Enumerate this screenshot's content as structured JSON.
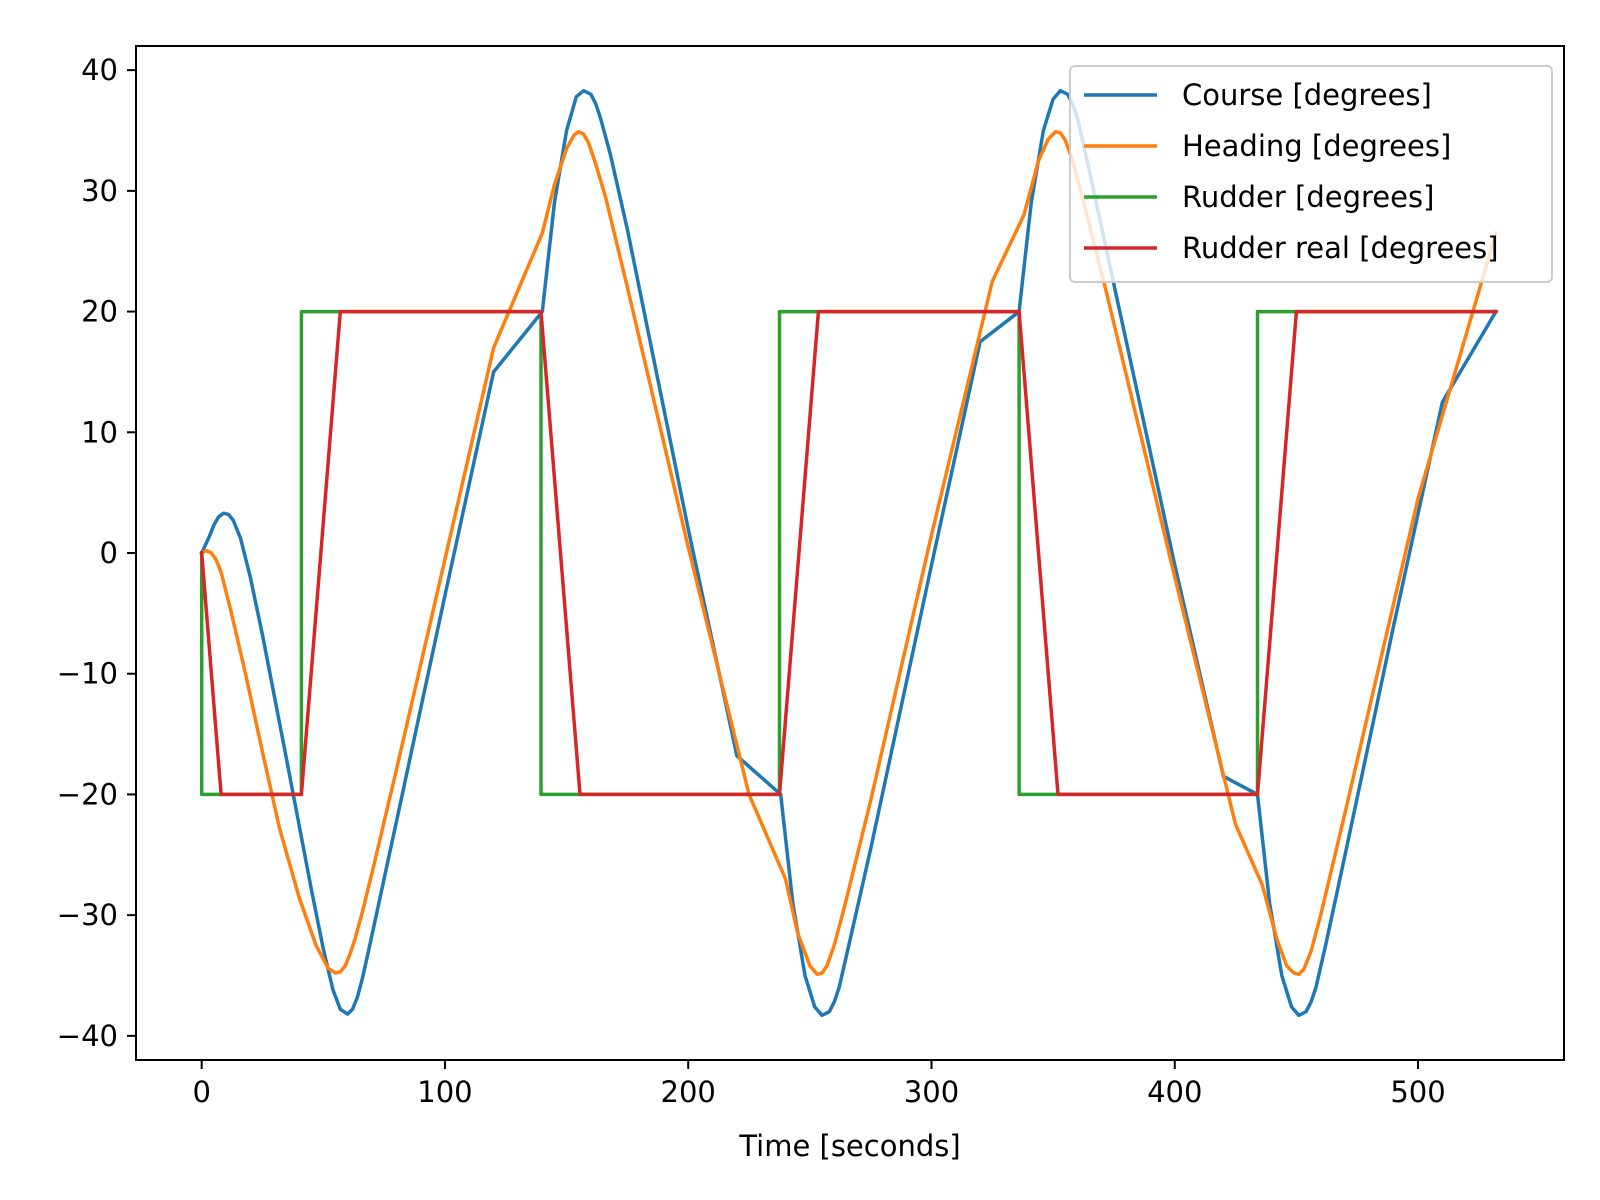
{
  "chart_data": {
    "type": "line",
    "title": "",
    "xlabel": "Time [seconds]",
    "ylabel": "",
    "xlim": [
      -27,
      560
    ],
    "ylim": [
      -42,
      42
    ],
    "x_ticks": [
      0,
      100,
      200,
      300,
      400,
      500
    ],
    "x_tick_labels": [
      "0",
      "100",
      "200",
      "300",
      "400",
      "500"
    ],
    "y_ticks": [
      -40,
      -30,
      -20,
      -10,
      0,
      10,
      20,
      30,
      40
    ],
    "y_tick_labels": [
      "−40",
      "−30",
      "−20",
      "−10",
      "0",
      "10",
      "20",
      "30",
      "40"
    ],
    "grid": false,
    "legend": {
      "placement": "upper right"
    },
    "series": [
      {
        "name": "Course [degrees]",
        "color": "#1f77b4",
        "x": [
          0,
          3,
          5,
          7,
          9,
          11,
          13,
          16,
          20,
          25,
          30,
          35,
          40,
          45,
          50,
          54,
          57,
          60,
          62,
          64,
          66,
          68,
          72,
          80,
          100,
          120,
          140,
          145,
          150,
          154,
          157,
          160,
          162,
          164,
          168,
          175,
          200,
          220,
          238,
          243,
          248,
          252,
          255,
          258,
          260,
          262,
          266,
          275,
          300,
          320,
          336,
          341,
          346,
          350,
          353,
          356,
          358,
          360,
          364,
          372,
          400,
          420,
          434,
          439,
          444,
          448,
          451,
          454,
          456,
          458,
          462,
          470,
          490,
          510,
          532
        ],
        "values": [
          0,
          1.3,
          2.3,
          3.0,
          3.3,
          3.2,
          2.7,
          1.2,
          -2.0,
          -6.8,
          -12.0,
          -17.2,
          -22.5,
          -27.8,
          -32.8,
          -36.2,
          -37.8,
          -38.2,
          -37.8,
          -36.8,
          -35.3,
          -33.5,
          -29.8,
          -22.3,
          -3.5,
          15.0,
          20.0,
          29.0,
          35.0,
          37.8,
          38.3,
          38.0,
          37.2,
          36.0,
          33.0,
          26.8,
          2.0,
          -16.8,
          -20.0,
          -29.0,
          -35.0,
          -37.6,
          -38.3,
          -38.0,
          -37.2,
          -36.0,
          -32.5,
          -24.5,
          -1.0,
          17.5,
          20.0,
          29.0,
          35.0,
          37.6,
          38.3,
          38.0,
          37.2,
          36.0,
          32.5,
          25.0,
          -1.0,
          -18.5,
          -20.0,
          -29.0,
          -35.0,
          -37.6,
          -38.3,
          -38.0,
          -37.2,
          -36.0,
          -32.5,
          -25.0,
          -6.0,
          12.5,
          20.0
        ]
      },
      {
        "name": "Heading [degrees]",
        "color": "#ff7f0e",
        "x": [
          0,
          2,
          4,
          6,
          8,
          12,
          18,
          25,
          32,
          40,
          47,
          52,
          55,
          57,
          59,
          61,
          63,
          66,
          70,
          80,
          100,
          120,
          140,
          145,
          150,
          153,
          155,
          157,
          159,
          162,
          166,
          175,
          200,
          225,
          240,
          245,
          250,
          253,
          255,
          257,
          260,
          264,
          275,
          300,
          325,
          338,
          344,
          348,
          351,
          353,
          355,
          358,
          362,
          372,
          400,
          425,
          436,
          442,
          446,
          449,
          451,
          453,
          456,
          460,
          470,
          500,
          532
        ],
        "values": [
          0,
          0.2,
          0,
          -0.6,
          -1.6,
          -4.8,
          -10.0,
          -16.5,
          -22.8,
          -28.5,
          -32.5,
          -34.4,
          -34.8,
          -34.7,
          -34.2,
          -33.2,
          -32.0,
          -29.8,
          -26.5,
          -18.0,
          -0.5,
          17.0,
          26.5,
          30.5,
          33.5,
          34.6,
          34.9,
          34.7,
          34.0,
          32.2,
          29.5,
          22.0,
          0.5,
          -20.0,
          -27.0,
          -31.5,
          -34.2,
          -34.9,
          -34.8,
          -34.2,
          -32.5,
          -29.5,
          -20.5,
          1.5,
          22.5,
          28.0,
          32.5,
          34.3,
          34.9,
          34.8,
          34.2,
          32.5,
          29.5,
          21.5,
          -2.0,
          -22.5,
          -27.5,
          -32.0,
          -34.2,
          -34.8,
          -34.9,
          -34.5,
          -33.0,
          -30.0,
          -21.5,
          4.5,
          26.5
        ]
      },
      {
        "name": "Rudder [degrees]",
        "color": "#2ca02c",
        "x": [
          0,
          0,
          41,
          41,
          139.5,
          139.5,
          237.5,
          237.5,
          336,
          336,
          434,
          434,
          532
        ],
        "values": [
          0,
          -20,
          -20,
          20,
          20,
          -20,
          -20,
          20,
          20,
          -20,
          -20,
          20,
          20
        ]
      },
      {
        "name": "Rudder real [degrees]",
        "color": "#d62728",
        "x": [
          0,
          8,
          41,
          57,
          139.5,
          155.5,
          237.5,
          253.5,
          336,
          352,
          434,
          450,
          532
        ],
        "values": [
          0,
          -20,
          -20,
          20,
          20,
          -20,
          -20,
          20,
          20,
          -20,
          -20,
          20,
          20
        ]
      }
    ]
  }
}
